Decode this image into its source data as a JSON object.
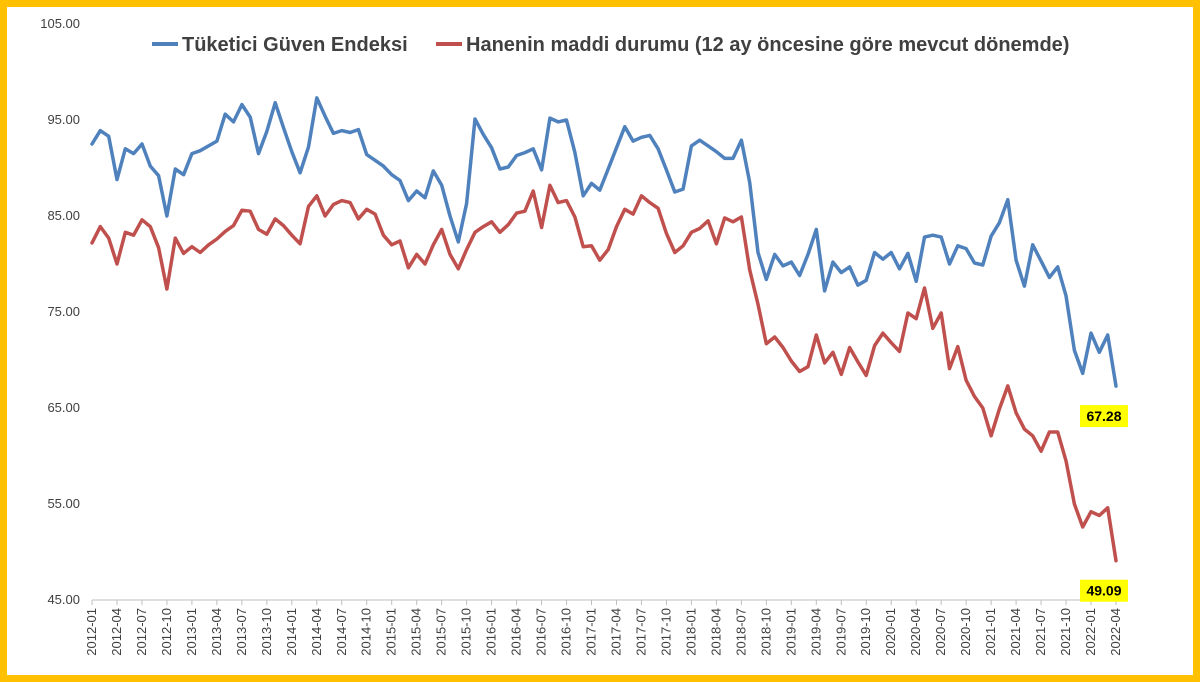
{
  "chart_data": {
    "type": "line",
    "title": "",
    "xlabel": "",
    "ylabel": "",
    "ylim": [
      45,
      105
    ],
    "yticks": [
      "45.00",
      "55.00",
      "65.00",
      "75.00",
      "85.00",
      "95.00",
      "105.00"
    ],
    "grid": false,
    "legend_position": "top",
    "x_tick_labels": [
      "2012-01",
      "2012-04",
      "2012-07",
      "2012-10",
      "2013-01",
      "2013-04",
      "2013-07",
      "2013-10",
      "2014-01",
      "2014-04",
      "2014-07",
      "2014-10",
      "2015-01",
      "2015-04",
      "2015-07",
      "2015-10",
      "2016-01",
      "2016-04",
      "2016-07",
      "2016-10",
      "2017-01",
      "2017-04",
      "2017-07",
      "2017-10",
      "2018-01",
      "2018-04",
      "2018-07",
      "2018-10",
      "2019-01",
      "2019-04",
      "2019-07",
      "2019-10",
      "2020-01",
      "2020-04",
      "2020-07",
      "2020-10",
      "2021-01",
      "2021-04",
      "2021-07",
      "2021-10",
      "2022-01",
      "2022-04"
    ],
    "series": [
      {
        "name": "Tüketici Güven Endeksi",
        "color": "#4F81BD",
        "end_label": "67.28",
        "values": [
          92.5,
          93.9,
          93.3,
          88.8,
          92.0,
          91.5,
          92.5,
          90.2,
          89.2,
          85.0,
          89.9,
          89.3,
          91.5,
          91.8,
          92.3,
          92.8,
          95.6,
          94.8,
          96.6,
          95.3,
          91.5,
          93.8,
          96.8,
          94.2,
          91.7,
          89.5,
          92.2,
          97.3,
          95.4,
          93.6,
          93.9,
          93.7,
          94.0,
          91.4,
          90.8,
          90.2,
          89.3,
          88.7,
          86.6,
          87.6,
          86.9,
          89.7,
          88.2,
          85.0,
          82.3,
          86.3,
          95.1,
          93.5,
          92.1,
          89.9,
          90.1,
          91.3,
          91.6,
          92.0,
          89.8,
          95.2,
          94.8,
          95.0,
          91.6,
          87.1,
          88.4,
          87.7,
          89.9,
          92.1,
          94.3,
          92.8,
          93.2,
          93.4,
          92.0,
          89.8,
          87.5,
          87.8,
          92.3,
          92.9,
          92.3,
          91.7,
          91.0,
          91.0,
          92.9,
          88.5,
          81.2,
          78.4,
          81.0,
          79.8,
          80.2,
          78.8,
          81.0,
          83.6,
          77.2,
          80.2,
          79.1,
          79.7,
          77.8,
          78.3,
          81.2,
          80.5,
          81.2,
          79.5,
          81.1,
          78.2,
          82.8,
          83.0,
          82.8,
          80.0,
          81.9,
          81.6,
          80.1,
          79.9,
          82.9,
          84.3,
          86.7,
          80.4,
          77.7,
          82.0,
          80.3,
          78.6,
          79.7,
          76.7,
          71.0,
          68.6,
          72.8,
          70.8,
          72.6,
          67.28
        ]
      },
      {
        "name": "Hanenin maddi durumu (12 ay öncesine göre mevcut dönemde)",
        "color": "#C0504D",
        "end_label": "49.09",
        "values": [
          82.2,
          83.9,
          82.7,
          80.0,
          83.3,
          83.0,
          84.6,
          83.9,
          81.7,
          77.4,
          82.7,
          81.1,
          81.8,
          81.2,
          82.0,
          82.6,
          83.4,
          84.0,
          85.6,
          85.5,
          83.6,
          83.1,
          84.7,
          84.0,
          83.0,
          82.1,
          86.0,
          87.1,
          85.0,
          86.2,
          86.6,
          86.4,
          84.7,
          85.7,
          85.2,
          83.0,
          82.0,
          82.4,
          79.6,
          81.0,
          80.0,
          82.0,
          83.6,
          81.0,
          79.5,
          81.5,
          83.3,
          83.9,
          84.4,
          83.3,
          84.1,
          85.3,
          85.5,
          87.6,
          83.8,
          88.2,
          86.4,
          86.6,
          84.9,
          81.8,
          81.9,
          80.4,
          81.5,
          83.9,
          85.7,
          85.2,
          87.1,
          86.4,
          85.8,
          83.2,
          81.2,
          81.9,
          83.3,
          83.7,
          84.5,
          82.1,
          84.8,
          84.4,
          84.9,
          79.4,
          75.8,
          71.7,
          72.4,
          71.3,
          69.9,
          68.8,
          69.3,
          72.6,
          69.7,
          70.8,
          68.5,
          71.3,
          69.8,
          68.4,
          71.5,
          72.8,
          71.8,
          70.9,
          74.9,
          74.3,
          77.5,
          73.3,
          74.9,
          69.1,
          71.4,
          67.9,
          66.2,
          65.0,
          62.1,
          64.9,
          67.3,
          64.5,
          62.8,
          62.1,
          60.5,
          62.5,
          62.5,
          59.5,
          55.0,
          52.6,
          54.2,
          53.8,
          54.6,
          49.09
        ]
      }
    ]
  }
}
